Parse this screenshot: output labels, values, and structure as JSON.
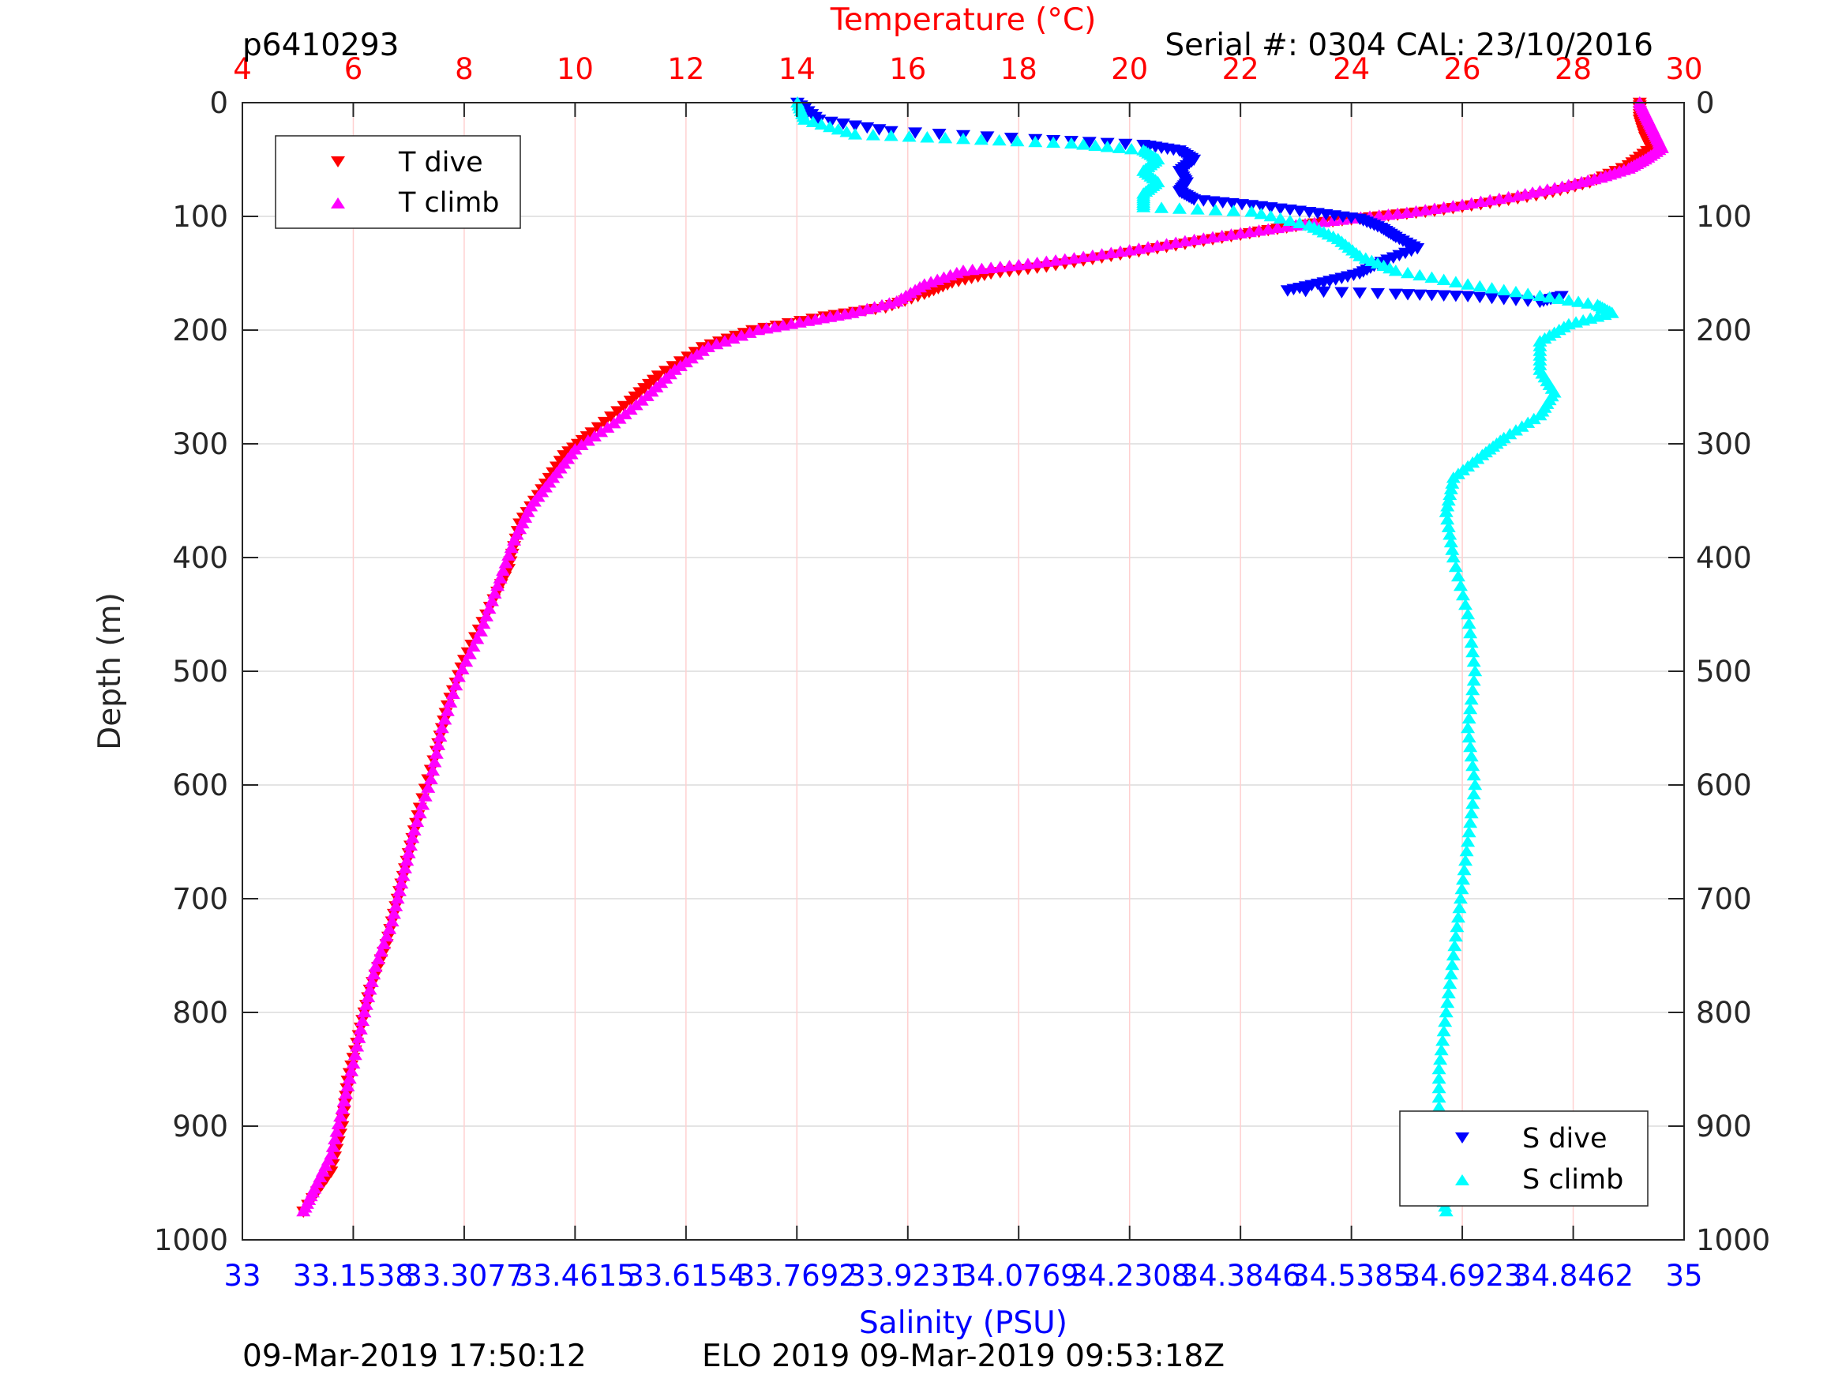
{
  "header": {
    "id": "p6410293",
    "serial": "Serial #: 0304  CAL: 23/10/2016"
  },
  "footer": {
    "left": "09-Mar-2019 17:50:12",
    "center": "ELO 2019 09-Mar-2019 09:53:18Z"
  },
  "colors": {
    "t_dive": "#ff0000",
    "t_climb": "#ff00ff",
    "s_dive": "#0000ff",
    "s_climb": "#00ffff",
    "temp_axis": "#ff0000",
    "sal_axis": "#0000ff",
    "axis": "#262626",
    "grid_depth": "#dcdcdc",
    "grid_temp": "#ffd0d0"
  },
  "chart_data": {
    "type": "scatter",
    "ylabel": "Depth (m)",
    "ylim": [
      1000,
      0
    ],
    "y_reversed": true,
    "yticks": [
      "0",
      "100",
      "200",
      "300",
      "400",
      "500",
      "600",
      "700",
      "800",
      "900",
      "1000"
    ],
    "temperature_axis": {
      "label": "Temperature (°C)",
      "position": "top",
      "range": [
        4,
        30
      ],
      "ticks": [
        "4",
        "6",
        "8",
        "10",
        "12",
        "14",
        "16",
        "18",
        "20",
        "22",
        "24",
        "26",
        "28",
        "30"
      ]
    },
    "salinity_axis": {
      "label": "Salinity (PSU)",
      "position": "bottom",
      "range": [
        33,
        35
      ],
      "ticks": [
        "33",
        "33.1538",
        "33.3077",
        "33.4615",
        "33.6154",
        "33.7692",
        "33.9231",
        "34.0769",
        "34.2308",
        "34.3846",
        "34.5385",
        "34.6923",
        "34.8462",
        "35"
      ]
    },
    "grid": true,
    "legends": [
      {
        "placement": "top-left",
        "entries": [
          "T dive",
          "T climb"
        ]
      },
      {
        "placement": "bottom-right",
        "entries": [
          "S dive",
          "S climb"
        ]
      }
    ],
    "series": [
      {
        "name": "T dive",
        "axis": "temperature",
        "marker": "triangle-down",
        "points": [
          [
            29.2,
            0
          ],
          [
            29.2,
            15
          ],
          [
            29.3,
            30
          ],
          [
            29.4,
            40
          ],
          [
            29.0,
            55
          ],
          [
            28.3,
            70
          ],
          [
            27.5,
            80
          ],
          [
            26.5,
            88
          ],
          [
            25.5,
            95
          ],
          [
            24.5,
            100
          ],
          [
            23.5,
            105
          ],
          [
            22.5,
            112
          ],
          [
            21.5,
            120
          ],
          [
            20.5,
            128
          ],
          [
            19.5,
            136
          ],
          [
            18.5,
            144
          ],
          [
            17.5,
            150
          ],
          [
            16.8,
            158
          ],
          [
            16.3,
            168
          ],
          [
            15.6,
            180
          ],
          [
            14.5,
            188
          ],
          [
            13.2,
            200
          ],
          [
            12.3,
            215
          ],
          [
            11.5,
            240
          ],
          [
            11.0,
            262
          ],
          [
            10.3,
            290
          ],
          [
            9.8,
            310
          ],
          [
            9.4,
            340
          ],
          [
            9.0,
            370
          ],
          [
            8.8,
            410
          ],
          [
            8.4,
            450
          ],
          [
            8.0,
            490
          ],
          [
            7.7,
            530
          ],
          [
            7.5,
            570
          ],
          [
            7.2,
            620
          ],
          [
            7.0,
            660
          ],
          [
            6.8,
            700
          ],
          [
            6.6,
            740
          ],
          [
            6.3,
            780
          ],
          [
            6.1,
            820
          ],
          [
            5.9,
            860
          ],
          [
            5.8,
            900
          ],
          [
            5.6,
            940
          ],
          [
            5.1,
            975
          ]
        ]
      },
      {
        "name": "T climb",
        "axis": "temperature",
        "marker": "triangle-up",
        "points": [
          [
            29.2,
            0
          ],
          [
            29.3,
            10
          ],
          [
            29.4,
            20
          ],
          [
            29.5,
            30
          ],
          [
            29.6,
            40
          ],
          [
            29.3,
            50
          ],
          [
            29.0,
            58
          ],
          [
            28.5,
            66
          ],
          [
            27.8,
            74
          ],
          [
            27.0,
            82
          ],
          [
            26.0,
            90
          ],
          [
            25.0,
            97
          ],
          [
            24.0,
            102
          ],
          [
            23.0,
            108
          ],
          [
            22.0,
            115
          ],
          [
            21.0,
            122
          ],
          [
            20.0,
            130
          ],
          [
            19.0,
            137
          ],
          [
            18.0,
            143
          ],
          [
            17.0,
            148
          ],
          [
            16.3,
            160
          ],
          [
            15.8,
            175
          ],
          [
            15.0,
            185
          ],
          [
            14.2,
            192
          ],
          [
            13.3,
            200
          ],
          [
            12.4,
            215
          ],
          [
            11.8,
            235
          ],
          [
            11.3,
            258
          ],
          [
            10.7,
            282
          ],
          [
            10.0,
            305
          ],
          [
            9.6,
            330
          ],
          [
            9.2,
            355
          ],
          [
            8.9,
            385
          ],
          [
            8.6,
            425
          ],
          [
            8.3,
            465
          ],
          [
            7.9,
            505
          ],
          [
            7.6,
            550
          ],
          [
            7.4,
            595
          ],
          [
            7.1,
            640
          ],
          [
            6.9,
            680
          ],
          [
            6.7,
            720
          ],
          [
            6.4,
            760
          ],
          [
            6.2,
            800
          ],
          [
            6.0,
            845
          ],
          [
            5.8,
            885
          ],
          [
            5.6,
            925
          ],
          [
            5.3,
            955
          ],
          [
            5.1,
            975
          ]
        ]
      },
      {
        "name": "S dive",
        "axis": "salinity",
        "marker": "triangle-down",
        "points": [
          [
            33.77,
            0
          ],
          [
            33.8,
            15
          ],
          [
            33.9,
            25
          ],
          [
            34.1,
            32
          ],
          [
            34.25,
            37
          ],
          [
            34.3,
            42
          ],
          [
            34.32,
            50
          ],
          [
            34.3,
            60
          ],
          [
            34.31,
            70
          ],
          [
            34.3,
            78
          ],
          [
            34.32,
            85
          ],
          [
            34.4,
            90
          ],
          [
            34.48,
            96
          ],
          [
            34.55,
            102
          ],
          [
            34.58,
            110
          ],
          [
            34.6,
            118
          ],
          [
            34.63,
            128
          ],
          [
            34.58,
            140
          ],
          [
            34.55,
            150
          ],
          [
            34.5,
            158
          ],
          [
            34.45,
            165
          ],
          [
            34.6,
            168
          ],
          [
            34.7,
            170
          ],
          [
            34.8,
            175
          ],
          [
            34.83,
            170
          ]
        ]
      },
      {
        "name": "S climb",
        "axis": "salinity",
        "marker": "triangle-up",
        "points": [
          [
            33.77,
            0
          ],
          [
            33.78,
            15
          ],
          [
            33.85,
            28
          ],
          [
            34.0,
            32
          ],
          [
            34.15,
            36
          ],
          [
            34.25,
            42
          ],
          [
            34.27,
            50
          ],
          [
            34.25,
            60
          ],
          [
            34.27,
            70
          ],
          [
            34.25,
            80
          ],
          [
            34.25,
            92
          ],
          [
            34.4,
            96
          ],
          [
            34.48,
            108
          ],
          [
            34.52,
            120
          ],
          [
            34.55,
            135
          ],
          [
            34.6,
            148
          ],
          [
            34.7,
            160
          ],
          [
            34.8,
            170
          ],
          [
            34.88,
            178
          ],
          [
            34.9,
            185
          ],
          [
            34.84,
            195
          ],
          [
            34.8,
            210
          ],
          [
            34.8,
            235
          ],
          [
            34.82,
            255
          ],
          [
            34.8,
            275
          ],
          [
            34.75,
            295
          ],
          [
            34.72,
            310
          ],
          [
            34.68,
            330
          ],
          [
            34.67,
            360
          ],
          [
            34.68,
            400
          ],
          [
            34.7,
            450
          ],
          [
            34.71,
            500
          ],
          [
            34.7,
            550
          ],
          [
            34.71,
            600
          ],
          [
            34.7,
            650
          ],
          [
            34.69,
            700
          ],
          [
            34.68,
            750
          ],
          [
            34.67,
            800
          ],
          [
            34.66,
            850
          ],
          [
            34.66,
            900
          ],
          [
            34.66,
            950
          ],
          [
            34.67,
            975
          ]
        ]
      }
    ]
  }
}
